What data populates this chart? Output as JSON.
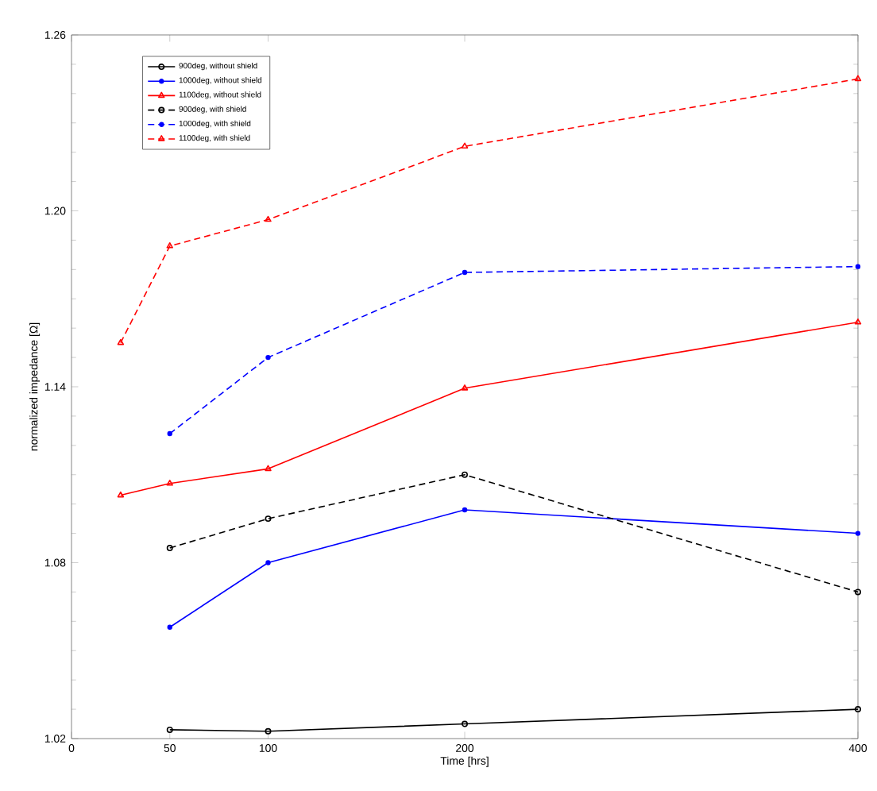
{
  "chart_data": {
    "type": "line",
    "xlabel": "Time [hrs]",
    "ylabel": "normalized impedance [Ω]",
    "xlim": [
      0,
      400
    ],
    "xticks": [
      0,
      50,
      100,
      200,
      400
    ],
    "ylim": [
      1.02,
      1.26
    ],
    "yticks": [
      1.02,
      1.08,
      1.14,
      {
        "value": 1.2,
        "label": "1.20"
      },
      1.26
    ],
    "legend": "top left",
    "grid": false,
    "series": [
      {
        "name": "900deg, without shield",
        "color": "#000000",
        "marker": "circle",
        "line_style": "solid",
        "x": [
          50,
          100,
          200,
          400
        ],
        "values": [
          1.023,
          1.0225,
          1.025,
          1.03
        ]
      },
      {
        "name": "1000deg, without shield",
        "color": "#0000ff",
        "marker": "star",
        "line_style": "solid",
        "x": [
          50,
          100,
          200,
          400
        ],
        "values": [
          1.058,
          1.08,
          1.098,
          1.09
        ]
      },
      {
        "name": "1100deg, without shield",
        "color": "#ff0000",
        "marker": "triangle",
        "line_style": "solid",
        "x": [
          25,
          50,
          100,
          200,
          400
        ],
        "values": [
          1.103,
          1.107,
          1.112,
          1.1395,
          1.162
        ]
      },
      {
        "name": "900deg, with shield",
        "color": "#000000",
        "marker": "circle",
        "line_style": "dashed",
        "x": [
          50,
          100,
          200,
          400
        ],
        "values": [
          1.085,
          1.095,
          1.11,
          1.07
        ]
      },
      {
        "name": "1000deg, with shield",
        "color": "#0000ff",
        "marker": "star",
        "line_style": "dashed",
        "x": [
          50,
          100,
          200,
          400
        ],
        "values": [
          1.124,
          1.15,
          1.179,
          1.181
        ]
      },
      {
        "name": "1100deg, with shield",
        "color": "#ff0000",
        "marker": "triangle",
        "line_style": "dashed",
        "x": [
          25,
          50,
          100,
          200,
          400
        ],
        "values": [
          1.155,
          1.188,
          1.197,
          1.222,
          1.245
        ]
      }
    ]
  }
}
